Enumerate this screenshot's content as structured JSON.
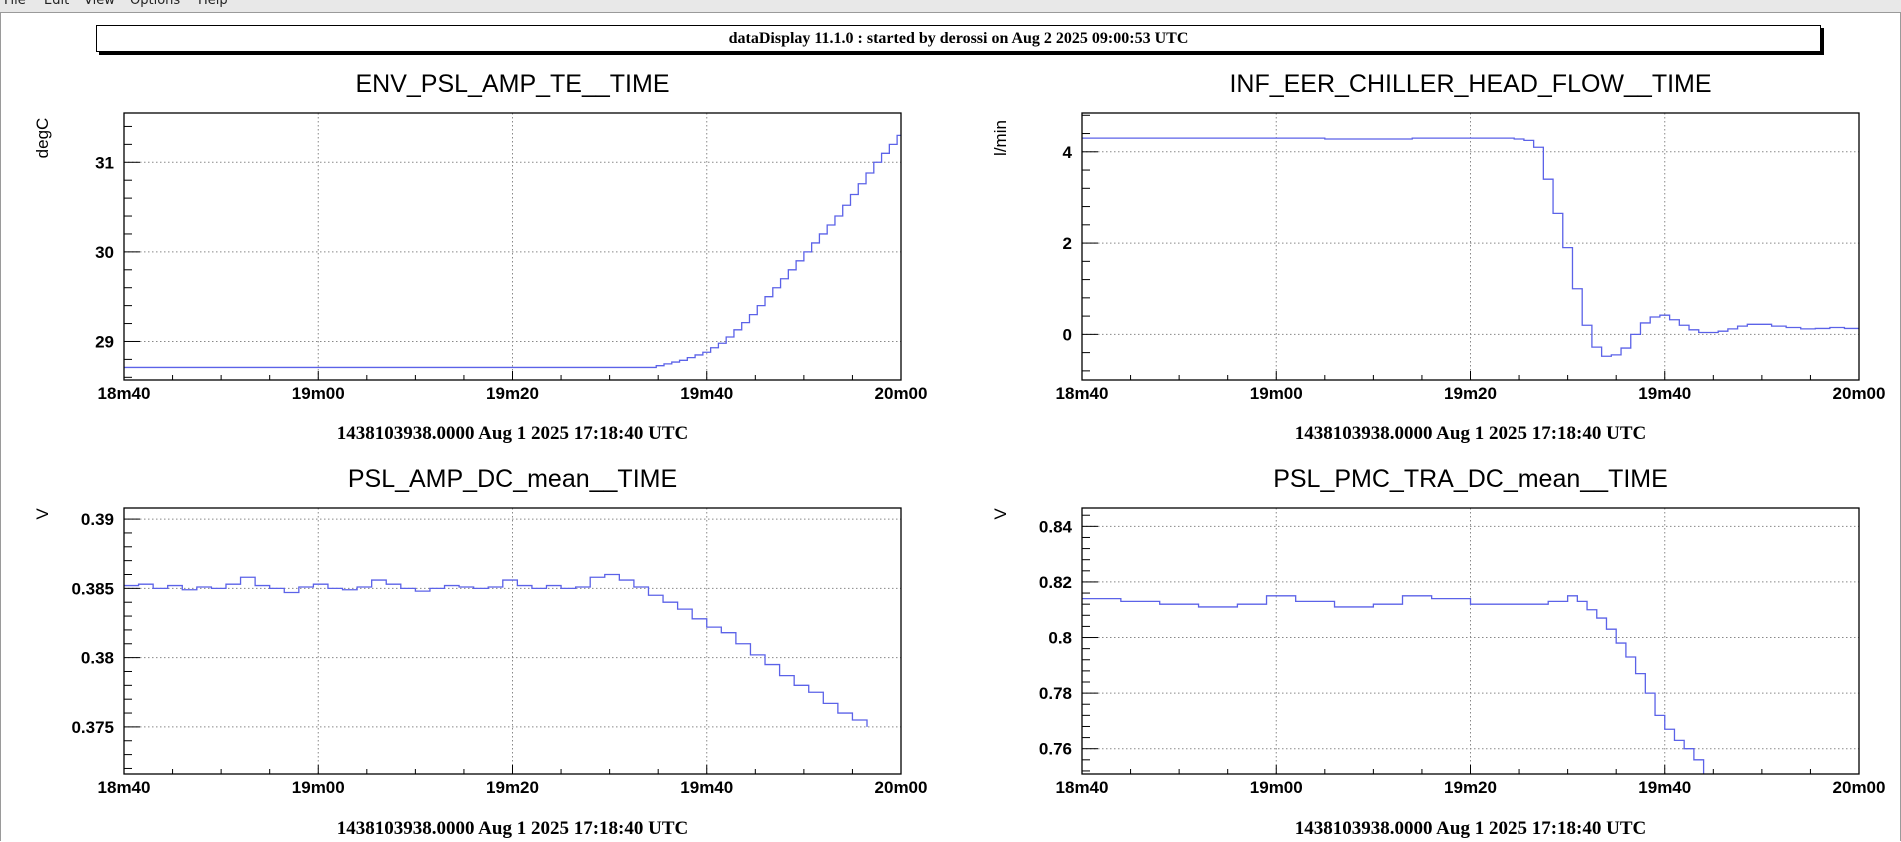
{
  "menubar": {
    "items": [
      "File",
      "Edit",
      "View",
      "Options",
      "Help"
    ]
  },
  "banner": {
    "text": "dataDisplay 11.1.0 : started by derossi on Aug  2 2025 09:00:53 UTC"
  },
  "colors": {
    "series": "#5b62e8",
    "frame": "#000000",
    "grid": "#888888",
    "background": "#ffffff"
  },
  "chart_data": [
    {
      "type": "line",
      "title": "ENV_PSL_AMP_TE__TIME",
      "ylabel": "degC",
      "xlabel": "1438103938.0000 Aug 1 2025 17:18:40 UTC",
      "xlim": [
        0,
        80
      ],
      "ylim": [
        28.57,
        31.55
      ],
      "xticks": [
        0,
        20,
        40,
        60,
        80
      ],
      "xtick_labels": [
        "18m40",
        "19m00",
        "19m20",
        "19m40",
        "20m00"
      ],
      "yticks": [
        29,
        30,
        31
      ],
      "ytick_labels": [
        "29",
        "30",
        "31"
      ],
      "grid": true,
      "step": true,
      "series": [
        {
          "x": [
            0,
            54,
            54.8,
            55.6,
            56.4,
            57.2,
            58,
            58.8,
            59.6,
            60.4,
            61.2,
            62,
            62.8,
            63.6,
            64.4,
            65.2,
            66,
            66.8,
            67.6,
            68.4,
            69.2,
            70,
            70.8,
            71.6,
            72.4,
            73.2,
            74,
            74.8,
            75.6,
            76.4,
            77.2,
            78,
            78.8,
            79.6,
            80
          ],
          "y": [
            28.71,
            28.71,
            28.73,
            28.75,
            28.77,
            28.79,
            28.82,
            28.85,
            28.88,
            28.93,
            28.98,
            29.05,
            29.13,
            29.21,
            29.3,
            29.4,
            29.5,
            29.6,
            29.7,
            29.8,
            29.9,
            30.0,
            30.1,
            30.2,
            30.3,
            30.4,
            30.52,
            30.64,
            30.76,
            30.88,
            31.0,
            31.1,
            31.2,
            31.3,
            31.3
          ]
        }
      ]
    },
    {
      "type": "line",
      "title": "INF_EER_CHILLER_HEAD_FLOW__TIME",
      "ylabel": "l/min",
      "xlabel": "1438103938.0000 Aug 1 2025 17:18:40 UTC",
      "xlim": [
        0,
        80
      ],
      "ylim": [
        -1,
        4.85
      ],
      "xticks": [
        0,
        20,
        40,
        60,
        80
      ],
      "xtick_labels": [
        "18m40",
        "19m00",
        "19m20",
        "19m40",
        "20m00"
      ],
      "yticks": [
        0,
        2,
        4
      ],
      "ytick_labels": [
        "0",
        "2",
        "4"
      ],
      "grid": true,
      "step": true,
      "series": [
        {
          "x": [
            0,
            16,
            18,
            22,
            25,
            29,
            33,
            34,
            44.5,
            45.5,
            46.5,
            47.5,
            48.5,
            49.5,
            50.5,
            51.5,
            52.5,
            53.5,
            54.5,
            55.5,
            56.5,
            57.5,
            58.5,
            59.5,
            60.5,
            61.5,
            62.5,
            63.5,
            64.5,
            65.5,
            66.5,
            67.5,
            68.5,
            69.5,
            71,
            72.5,
            74,
            75.5,
            77,
            78.5,
            80
          ],
          "y": [
            4.3,
            4.3,
            4.3,
            4.3,
            4.28,
            4.28,
            4.28,
            4.3,
            4.28,
            4.25,
            4.1,
            3.4,
            2.65,
            1.9,
            1.0,
            0.2,
            -0.28,
            -0.48,
            -0.45,
            -0.3,
            0.0,
            0.25,
            0.38,
            0.42,
            0.32,
            0.2,
            0.1,
            0.04,
            0.04,
            0.07,
            0.12,
            0.18,
            0.22,
            0.22,
            0.18,
            0.15,
            0.12,
            0.13,
            0.15,
            0.13,
            0.13
          ]
        }
      ]
    },
    {
      "type": "line",
      "title": "PSL_AMP_DC_mean__TIME",
      "ylabel": "V",
      "xlabel": "1438103938.0000 Aug 1 2025 17:18:40 UTC",
      "xlim": [
        0,
        80
      ],
      "ylim": [
        0.3716,
        0.3908
      ],
      "xticks": [
        0,
        20,
        40,
        60,
        80
      ],
      "xtick_labels": [
        "18m40",
        "19m00",
        "19m20",
        "19m40",
        "20m00"
      ],
      "yticks": [
        0.375,
        0.38,
        0.385,
        0.39
      ],
      "ytick_labels": [
        "0.375",
        "0.38",
        "0.385",
        "0.39"
      ],
      "grid": true,
      "step": true,
      "series": [
        {
          "x": [
            0,
            1.5,
            3,
            4.5,
            6,
            7.5,
            9,
            10.5,
            12,
            13.5,
            15,
            16.5,
            18,
            19.5,
            21,
            22.5,
            24,
            25.5,
            27,
            28.5,
            30,
            31.5,
            33,
            34.5,
            36,
            37.5,
            39,
            40.5,
            42,
            43.5,
            45,
            46.5,
            48,
            49.5,
            51,
            52.5,
            54,
            55.5,
            57,
            58.5,
            60,
            61.5,
            63,
            64.5,
            66,
            67.5,
            69,
            70.5,
            72,
            73.5,
            75,
            76.5
          ],
          "y": [
            0.3852,
            0.3853,
            0.385,
            0.3852,
            0.3849,
            0.3851,
            0.385,
            0.3853,
            0.3858,
            0.3852,
            0.385,
            0.3847,
            0.3851,
            0.3853,
            0.385,
            0.3849,
            0.3851,
            0.3856,
            0.3853,
            0.385,
            0.3848,
            0.385,
            0.3852,
            0.3851,
            0.385,
            0.3851,
            0.3856,
            0.3852,
            0.385,
            0.3852,
            0.385,
            0.3851,
            0.3858,
            0.386,
            0.3856,
            0.3851,
            0.3845,
            0.384,
            0.3835,
            0.3828,
            0.3822,
            0.3818,
            0.381,
            0.3802,
            0.3795,
            0.3787,
            0.378,
            0.3775,
            0.3767,
            0.376,
            0.3755,
            0.375
          ]
        }
      ]
    },
    {
      "type": "line",
      "title": "PSL_PMC_TRA_DC_mean__TIME",
      "ylabel": "V",
      "xlabel": "1438103938.0000 Aug 1 2025 17:18:40 UTC",
      "xlim": [
        0,
        80
      ],
      "ylim": [
        0.7509,
        0.8466
      ],
      "xticks": [
        0,
        20,
        40,
        60,
        80
      ],
      "xtick_labels": [
        "18m40",
        "19m00",
        "19m20",
        "19m40",
        "20m00"
      ],
      "yticks": [
        0.76,
        0.78,
        0.8,
        0.82,
        0.84
      ],
      "ytick_labels": [
        "0.76",
        "0.78",
        "0.8",
        "0.82",
        "0.84"
      ],
      "grid": true,
      "step": true,
      "series": [
        {
          "x": [
            0,
            4,
            8,
            12,
            16,
            19,
            22,
            26,
            30,
            33,
            36,
            40,
            44,
            48,
            50,
            51,
            52,
            53,
            54,
            55,
            56,
            57,
            58,
            59,
            60,
            61,
            62,
            63,
            64,
            65
          ],
          "y": [
            0.814,
            0.813,
            0.812,
            0.811,
            0.812,
            0.815,
            0.813,
            0.811,
            0.812,
            0.815,
            0.814,
            0.812,
            0.812,
            0.813,
            0.815,
            0.813,
            0.81,
            0.807,
            0.803,
            0.798,
            0.793,
            0.787,
            0.78,
            0.772,
            0.767,
            0.763,
            0.76,
            0.756,
            0.75,
            0.745
          ]
        }
      ]
    }
  ]
}
